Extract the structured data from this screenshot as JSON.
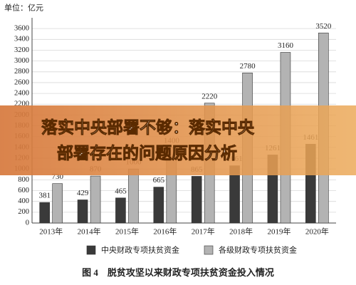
{
  "chart_data": {
    "type": "bar",
    "title": "图 4　脱贫攻坚以来财政专项扶贫资金投入情况",
    "ylabel": "单位：亿元",
    "categories": [
      "2013年",
      "2014年",
      "2015年",
      "2016年",
      "2017年",
      "2018年",
      "2019年",
      "2020年"
    ],
    "series": [
      {
        "name": "中央财政专项扶贫资金",
        "color": "#3a3a3a",
        "values": [
          381,
          429,
          465,
          665,
          865,
          1061,
          1261,
          1461
        ]
      },
      {
        "name": "各级财政专项扶贫资金",
        "color": "#b3b3b3",
        "values": [
          730,
          870,
          1000,
          1400,
          2220,
          2780,
          3160,
          3520
        ]
      }
    ],
    "ylim": [
      0,
      3800
    ],
    "yticks": [
      0,
      200,
      400,
      600,
      800,
      1000,
      1200,
      1400,
      1600,
      1800,
      2000,
      2200,
      2400,
      2600,
      2800,
      3000,
      3200,
      3400,
      3600
    ],
    "grid": true
  },
  "overlay": {
    "lines": [
      "落实中央部署不够：落实中央",
      "部署存在的问题原因分析"
    ]
  }
}
